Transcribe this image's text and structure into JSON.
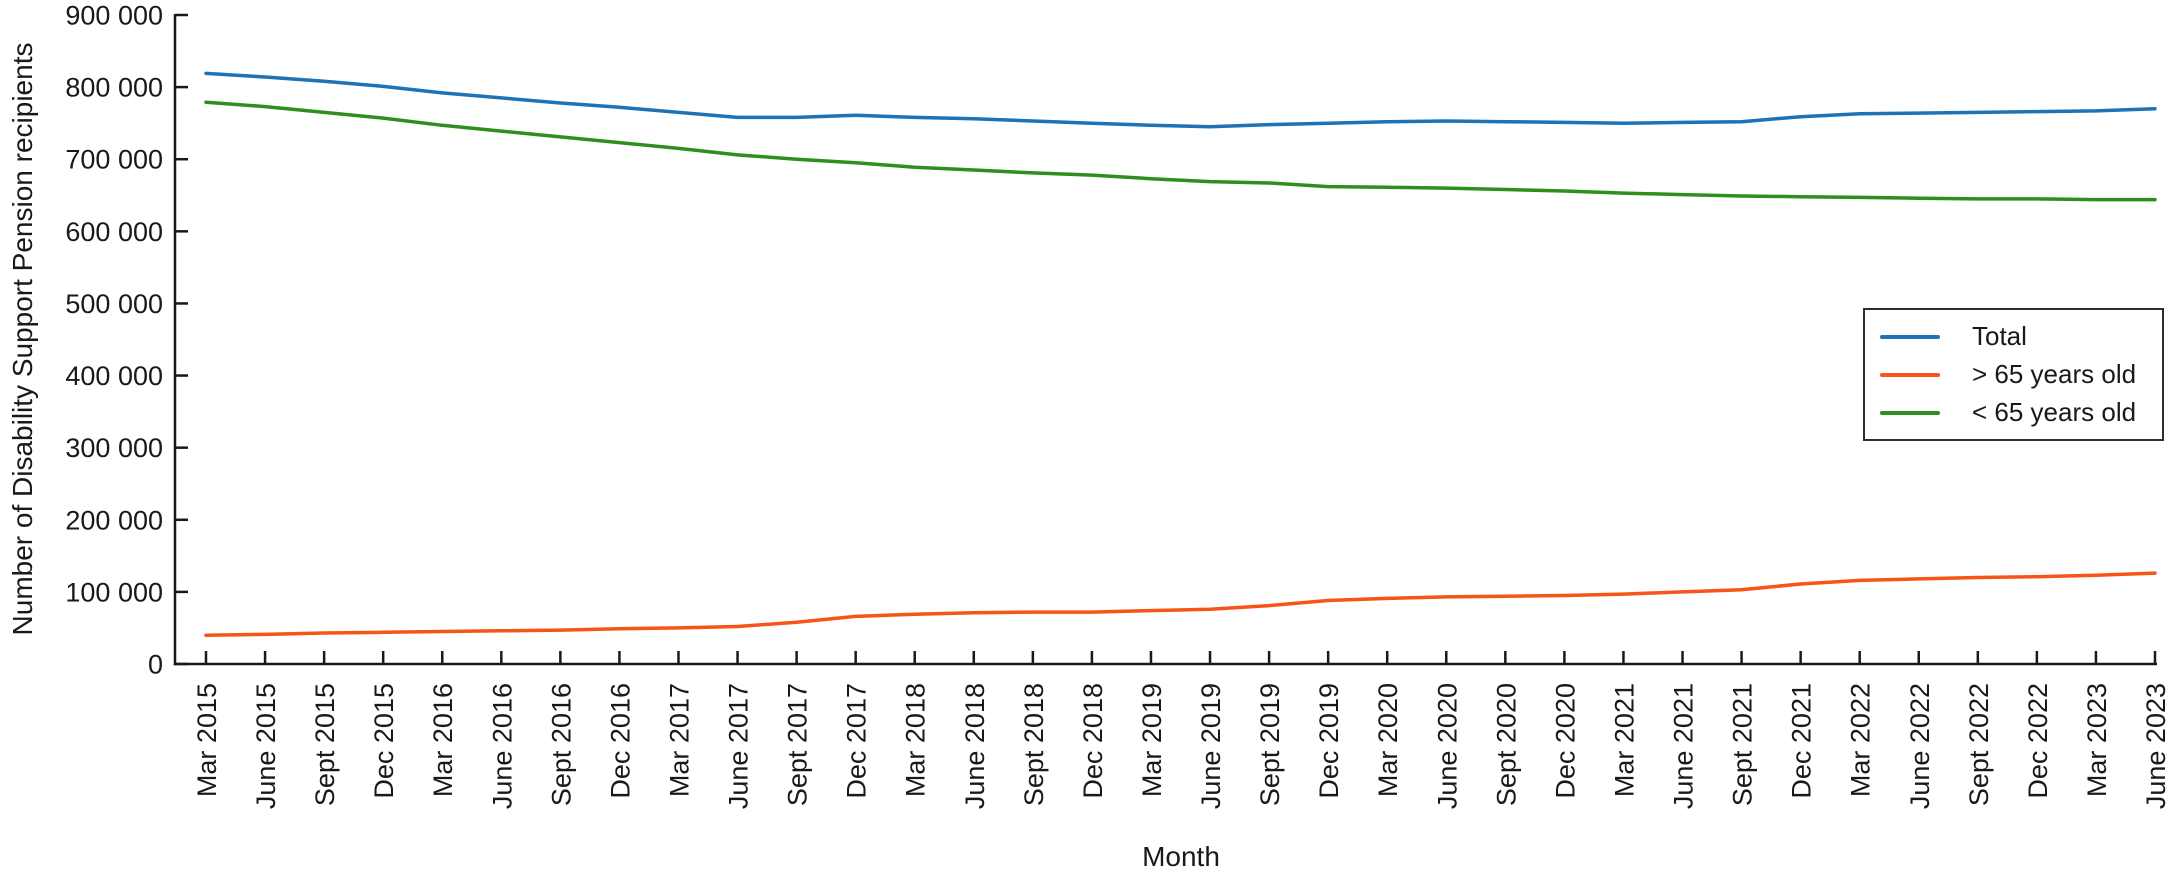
{
  "chart_data": {
    "type": "line",
    "xlabel": "Month",
    "ylabel": "Number of Disability Support Pension recipients",
    "ylim": [
      0,
      900000
    ],
    "grid": false,
    "legend_position": "right inside plot",
    "y_ticks": [
      0,
      100000,
      200000,
      300000,
      400000,
      500000,
      600000,
      700000,
      800000,
      900000
    ],
    "y_tick_labels": [
      "0",
      "100 000",
      "200 000",
      "300 000",
      "400 000",
      "500 000",
      "600 000",
      "700 000",
      "800 000",
      "900 000"
    ],
    "categories": [
      "Mar 2015",
      "June 2015",
      "Sept 2015",
      "Dec 2015",
      "Mar 2016",
      "June 2016",
      "Sept 2016",
      "Dec 2016",
      "Mar 2017",
      "June 2017",
      "Sept 2017",
      "Dec 2017",
      "Mar 2018",
      "June 2018",
      "Sept 2018",
      "Dec 2018",
      "Mar 2019",
      "June 2019",
      "Sept 2019",
      "Dec 2019",
      "Mar 2020",
      "June 2020",
      "Sept 2020",
      "Dec 2020",
      "Mar 2021",
      "June 2021",
      "Sept 2021",
      "Dec 2021",
      "Mar 2022",
      "June 2022",
      "Sept 2022",
      "Dec 2022",
      "Mar 2023",
      "June 2023"
    ],
    "series": [
      {
        "key": "total",
        "name": "Total",
        "color": "#1f72b4",
        "values": [
          819000,
          814000,
          808000,
          801000,
          792000,
          785000,
          778000,
          772000,
          765000,
          758000,
          758000,
          761000,
          758000,
          756000,
          753000,
          750000,
          747000,
          745000,
          748000,
          750000,
          752000,
          753000,
          752000,
          751000,
          750000,
          751000,
          752000,
          759000,
          763000,
          764000,
          765000,
          766000,
          767000,
          770000
        ]
      },
      {
        "key": "over-65",
        "name": "> 65 years old",
        "color": "#f85418",
        "values": [
          40000,
          41000,
          43000,
          44000,
          45000,
          46000,
          47000,
          49000,
          50000,
          52000,
          58000,
          66000,
          69000,
          71000,
          72000,
          72000,
          74000,
          76000,
          81000,
          88000,
          91000,
          93000,
          94000,
          95000,
          97000,
          100000,
          103000,
          111000,
          116000,
          118000,
          120000,
          121000,
          123000,
          126000
        ]
      },
      {
        "key": "under-65",
        "name": "< 65 years old",
        "color": "#2e8f1e",
        "values": [
          779000,
          773000,
          765000,
          757000,
          747000,
          739000,
          731000,
          723000,
          715000,
          706000,
          700000,
          695000,
          689000,
          685000,
          681000,
          678000,
          673000,
          669000,
          667000,
          662000,
          661000,
          660000,
          658000,
          656000,
          653000,
          651000,
          649000,
          648000,
          647000,
          646000,
          645000,
          645000,
          644000,
          644000
        ]
      }
    ]
  }
}
